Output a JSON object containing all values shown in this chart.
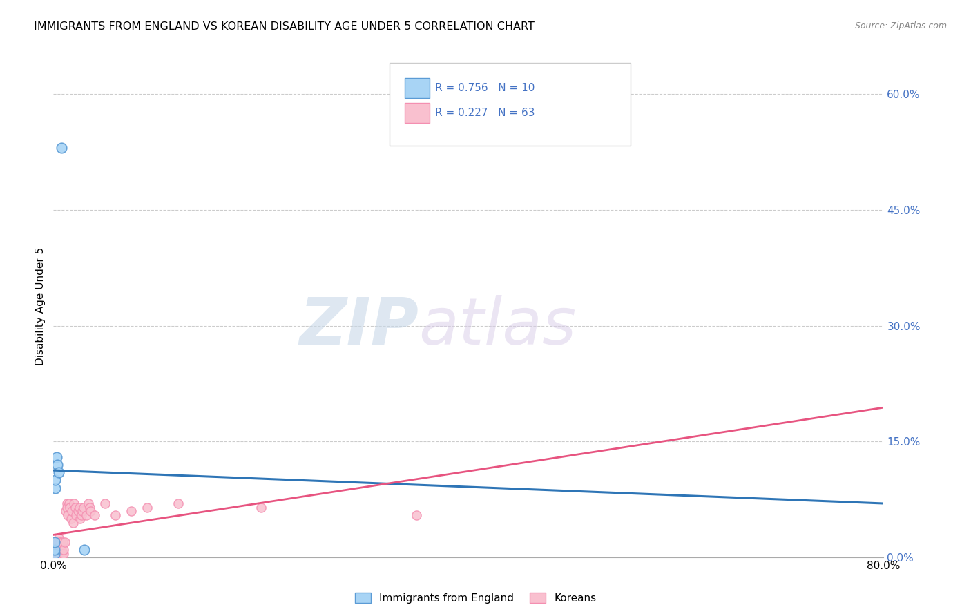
{
  "title": "IMMIGRANTS FROM ENGLAND VS KOREAN DISABILITY AGE UNDER 5 CORRELATION CHART",
  "source": "Source: ZipAtlas.com",
  "ylabel": "Disability Age Under 5",
  "right_yticks": [
    "0.0%",
    "15.0%",
    "30.0%",
    "45.0%",
    "60.0%"
  ],
  "right_ytick_vals": [
    0.0,
    0.15,
    0.3,
    0.45,
    0.6
  ],
  "england_R": 0.756,
  "england_N": 10,
  "korean_R": 0.227,
  "korean_N": 63,
  "england_scatter_x": [
    0.001,
    0.001,
    0.001,
    0.002,
    0.002,
    0.003,
    0.004,
    0.005,
    0.008,
    0.03
  ],
  "england_scatter_y": [
    0.005,
    0.01,
    0.02,
    0.09,
    0.1,
    0.13,
    0.12,
    0.11,
    0.53,
    0.01
  ],
  "korean_scatter_x": [
    0.001,
    0.001,
    0.001,
    0.001,
    0.002,
    0.002,
    0.002,
    0.002,
    0.003,
    0.003,
    0.003,
    0.003,
    0.004,
    0.004,
    0.004,
    0.004,
    0.005,
    0.005,
    0.005,
    0.005,
    0.006,
    0.006,
    0.006,
    0.007,
    0.007,
    0.007,
    0.008,
    0.008,
    0.009,
    0.009,
    0.01,
    0.01,
    0.011,
    0.012,
    0.013,
    0.013,
    0.014,
    0.015,
    0.016,
    0.017,
    0.018,
    0.019,
    0.02,
    0.021,
    0.022,
    0.024,
    0.025,
    0.026,
    0.027,
    0.028,
    0.029,
    0.032,
    0.034,
    0.035,
    0.036,
    0.04,
    0.05,
    0.06,
    0.075,
    0.09,
    0.12,
    0.2,
    0.35
  ],
  "korean_scatter_y": [
    0.005,
    0.005,
    0.01,
    0.01,
    0.005,
    0.01,
    0.01,
    0.015,
    0.005,
    0.01,
    0.01,
    0.015,
    0.005,
    0.01,
    0.01,
    0.02,
    0.005,
    0.01,
    0.02,
    0.025,
    0.005,
    0.01,
    0.02,
    0.005,
    0.01,
    0.02,
    0.005,
    0.01,
    0.005,
    0.02,
    0.005,
    0.01,
    0.02,
    0.06,
    0.07,
    0.065,
    0.055,
    0.07,
    0.065,
    0.05,
    0.06,
    0.045,
    0.07,
    0.065,
    0.055,
    0.06,
    0.065,
    0.05,
    0.055,
    0.06,
    0.065,
    0.055,
    0.07,
    0.065,
    0.06,
    0.055,
    0.07,
    0.055,
    0.06,
    0.065,
    0.07,
    0.065,
    0.055
  ],
  "england_line_color": "#2e75b6",
  "korean_line_color": "#e75480",
  "england_dot_face": "#a8d4f5",
  "england_dot_edge": "#5b9bd5",
  "korean_dot_face": "#f9c0cf",
  "korean_dot_edge": "#f48fb1",
  "bg_color": "#ffffff",
  "grid_color": "#cccccc",
  "watermark_zip": "ZIP",
  "watermark_atlas": "atlas",
  "xlim": [
    0.0,
    0.8
  ],
  "ylim": [
    0.0,
    0.65
  ],
  "legend_r1": "R = 0.756",
  "legend_n1": "N = 10",
  "legend_r2": "R = 0.227",
  "legend_n2": "N = 63"
}
